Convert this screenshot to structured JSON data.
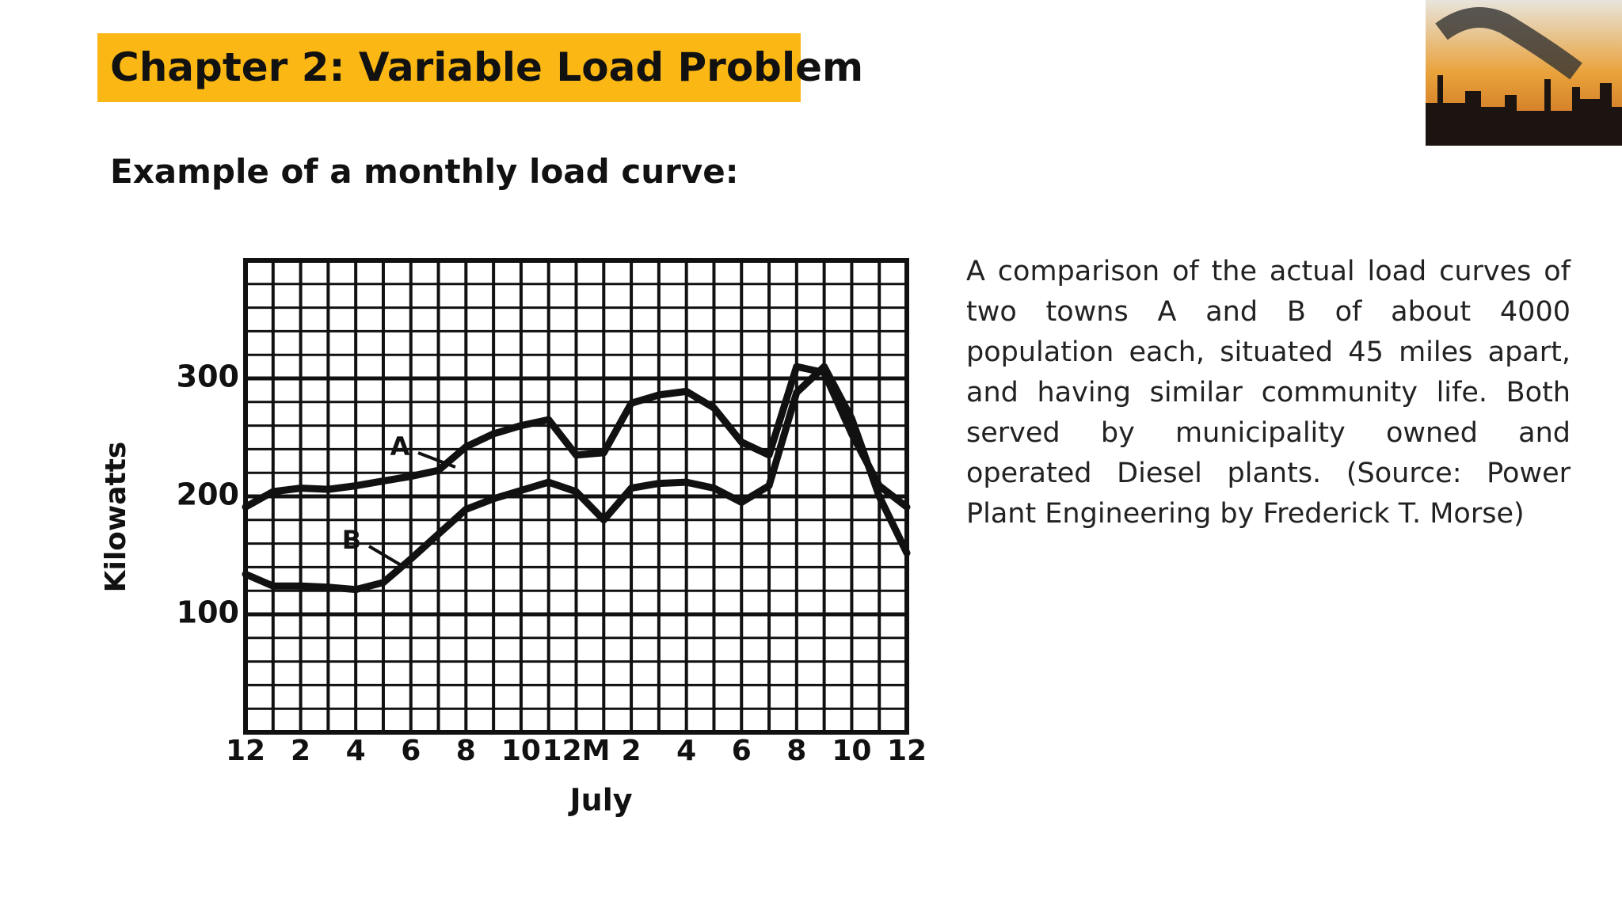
{
  "title": "Chapter 2: Variable Load Problem",
  "subtitle": "Example of a monthly load curve:",
  "description": "A comparison of the actual load curves of two towns A and B of about 4000 population each, situated 45 miles apart, and having similar community life. Both served by municipality owned and operated Diesel plants. (Source: Power Plant Engineering by Frederick T. Morse)",
  "chart_data": {
    "type": "line",
    "x_label": "July",
    "y_label": "Kilowatts",
    "categories": [
      "12",
      null,
      "2",
      null,
      "4",
      null,
      "6",
      null,
      "8",
      null,
      "10",
      null,
      "12M",
      null,
      "2",
      null,
      "4",
      null,
      "6",
      null,
      "8",
      null,
      "10",
      null,
      "12"
    ],
    "series": [
      {
        "name": "A",
        "color": "#111111",
        "values": [
          191,
          204,
          207,
          206,
          209,
          213,
          217,
          222,
          242,
          253,
          260,
          265,
          235,
          237,
          279,
          286,
          289,
          275,
          246,
          235,
          310,
          305,
          253,
          209,
          191
        ]
      },
      {
        "name": "B",
        "color": "#111111",
        "values": [
          134,
          124,
          124,
          123,
          121,
          127,
          147,
          168,
          189,
          198,
          205,
          212,
          204,
          180,
          207,
          211,
          212,
          207,
          195,
          209,
          288,
          310,
          266,
          200,
          152
        ]
      }
    ],
    "ylim": [
      0,
      400
    ],
    "yticks": [
      100,
      200,
      300
    ],
    "grid": true
  }
}
